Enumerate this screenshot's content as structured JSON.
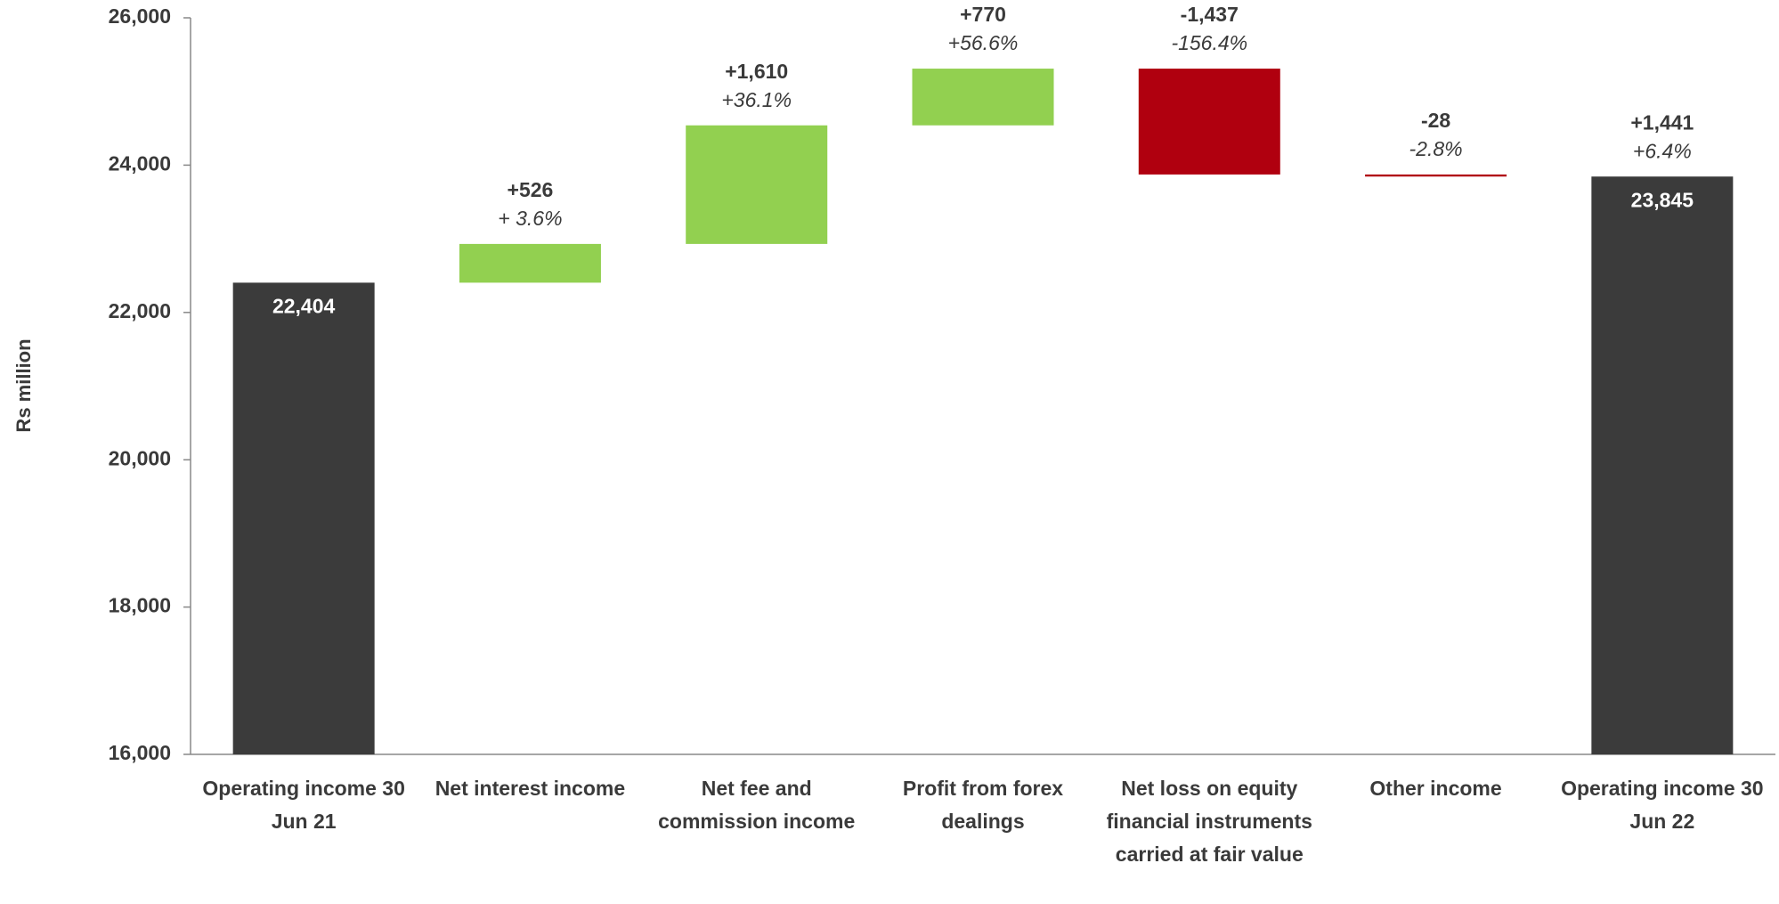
{
  "chart_data": {
    "type": "waterfall",
    "y_axis_label": "Rs million",
    "categories": [
      "Operating income 30 Jun 21",
      "Net interest income",
      "Net fee and commission income",
      "Profit from forex dealings",
      "Net loss on equity financial instruments carried at fair value",
      "Other income",
      "Operating income 30 Jun 22"
    ],
    "kinds": [
      "total",
      "delta",
      "delta",
      "delta",
      "delta",
      "delta",
      "total"
    ],
    "values": [
      22404,
      526,
      1610,
      770,
      -1437,
      -28,
      23845
    ],
    "value_labels": [
      "22,404",
      "+526",
      "+1,610",
      "+770",
      "-1,437",
      "-28",
      "23,845"
    ],
    "percent_labels": [
      null,
      "+ 3.6%",
      "+36.1%",
      "+56.6%",
      "-156.4%",
      "-2.8%",
      "+6.4%"
    ],
    "total_change": {
      "value": 1441,
      "label": "+1,441"
    },
    "colors": {
      "total": "#3b3b3b",
      "increase": "#92d050",
      "decrease": "#b0000f"
    },
    "ylim": [
      16000,
      26000
    ],
    "yticks": [
      {
        "value": 16000,
        "label": "16,000"
      },
      {
        "value": 18000,
        "label": "18,000"
      },
      {
        "value": 20000,
        "label": "20,000"
      },
      {
        "value": 22000,
        "label": "22,000"
      },
      {
        "value": 24000,
        "label": "24,000"
      },
      {
        "value": 26000,
        "label": "26,000"
      }
    ]
  }
}
